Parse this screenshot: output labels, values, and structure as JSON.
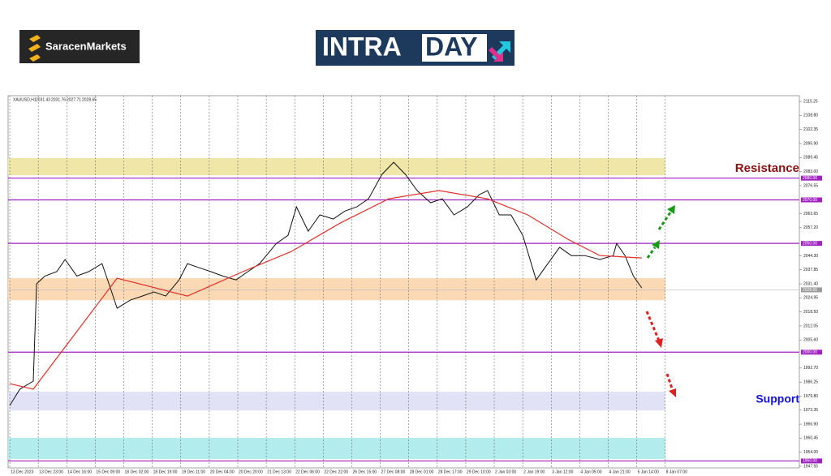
{
  "header": {
    "brand": "SaracenMarkets",
    "banner_parts": [
      "INTRA",
      "DAY"
    ]
  },
  "chart_data": {
    "type": "line",
    "symbol": "XAUUSD,H1",
    "ohlc": [
      2031.43,
      2031.76,
      2027.71,
      2028.65
    ],
    "xlim": [
      -1,
      471
    ],
    "ylim": [
      1946.8,
      2117.9
    ],
    "xticks": [
      {
        "value": 0,
        "label": "13 Dec 2023"
      },
      {
        "value": 17,
        "label": "13 Dec 23:00"
      },
      {
        "value": 34,
        "label": "14 Dec 16:00"
      },
      {
        "value": 51,
        "label": "15 Dec 09:00"
      },
      {
        "value": 68,
        "label": "18 Dec 02:00"
      },
      {
        "value": 85,
        "label": "18 Dec 19:00"
      },
      {
        "value": 102,
        "label": "19 Dec 11:00"
      },
      {
        "value": 119,
        "label": "20 Dec 04:00"
      },
      {
        "value": 136,
        "label": "20 Dec 20:00"
      },
      {
        "value": 153,
        "label": "21 Dec 13:00"
      },
      {
        "value": 170,
        "label": "22 Dec 06:00"
      },
      {
        "value": 187,
        "label": "22 Dec 22:00"
      },
      {
        "value": 204,
        "label": "26 Dec 15:00"
      },
      {
        "value": 221,
        "label": "27 Dec 08:00"
      },
      {
        "value": 238,
        "label": "28 Dec 01:00"
      },
      {
        "value": 255,
        "label": "28 Dec 17:00"
      },
      {
        "value": 272,
        "label": "29 Dec 10:00"
      },
      {
        "value": 289,
        "label": "2 Jan 03:00"
      },
      {
        "value": 306,
        "label": "2 Jan 19:00"
      },
      {
        "value": 323,
        "label": "3 Jan 12:00"
      },
      {
        "value": 340,
        "label": "4 Jan 05:00"
      },
      {
        "value": 357,
        "label": "4 Jan 21:00"
      },
      {
        "value": 374,
        "label": "5 Jan 14:00"
      },
      {
        "value": 391,
        "label": "8 Jan 07:00"
      }
    ],
    "yticks": [
      2115.25,
      {
        "value": 2108.8,
        "label": "2108.80"
      },
      2102.35,
      {
        "value": 2095.9,
        "label": "2095.90"
      },
      2089.45,
      {
        "value": 2083,
        "label": "2083.00"
      },
      2076.55,
      2063.65,
      {
        "value": 2057.2,
        "label": "2057.20"
      },
      {
        "value": 2044.3,
        "label": "2044.30"
      },
      2037.85,
      {
        "value": 2031.4,
        "label": "2031.40"
      },
      2024.95,
      {
        "value": 2018.5,
        "label": "2018.50"
      },
      2012.05,
      {
        "value": 2005.6,
        "label": "2005.60"
      },
      {
        "value": 1992.7,
        "label": "1992.70"
      },
      1986.25,
      {
        "value": 1979.8,
        "label": "1979.80"
      },
      1973.35,
      {
        "value": 1966.9,
        "label": "1966.90"
      },
      1960.45,
      {
        "value": 1954,
        "label": "1954.00"
      },
      1947.55
    ],
    "series": [
      {
        "color": "#111111",
        "x": [
          0,
          6,
          14,
          16,
          21,
          28,
          33,
          40,
          47,
          55,
          60,
          64,
          72,
          79,
          86,
          93,
          101,
          106,
          113,
          120,
          127,
          135,
          142,
          149,
          159,
          166,
          171,
          178,
          185,
          193,
          200,
          207,
          214,
          222,
          229,
          236,
          243,
          251,
          258,
          265,
          273,
          280,
          285,
          292,
          299,
          306,
          314,
          321,
          328,
          335,
          343,
          352,
          360,
          362,
          367,
          372,
          377
        ],
        "values": [
          1975.5,
          1983,
          1986.7,
          2031.4,
          2035,
          2037,
          2042.6,
          2035,
          2037,
          2040.7,
          2029.5,
          2020.2,
          2024,
          2025.8,
          2027.7,
          2025.8,
          2033.2,
          2040.7,
          2038.8,
          2037,
          2035,
          2033.2,
          2037,
          2040.7,
          2050,
          2053.7,
          2066.8,
          2055.6,
          2063.1,
          2061.2,
          2064.9,
          2066.8,
          2070.5,
          2081.7,
          2087.3,
          2081.7,
          2074.3,
          2068.7,
          2070.5,
          2063.1,
          2066.8,
          2072.4,
          2074.3,
          2063.1,
          2063.1,
          2053.7,
          2033.2,
          2040.7,
          2048.2,
          2044.4,
          2044.4,
          2042.6,
          2044.4,
          2050,
          2044.4,
          2035,
          2029.5
        ]
      },
      {
        "color": "#e0302a",
        "x": [
          0,
          14,
          64,
          106,
          139,
          168,
          197,
          226,
          256,
          285,
          309,
          333,
          352,
          377
        ],
        "values": [
          1985.5,
          1983,
          2034,
          2025.8,
          2037,
          2046.3,
          2059.3,
          2070.5,
          2074.3,
          2070.5,
          2063.1,
          2051.9,
          2044.4,
          2043.3
        ]
      }
    ],
    "zones_end_x": 391,
    "bands": [
      {
        "from": 2081.3,
        "to": 2089.2,
        "color": "#efe6a8"
      },
      {
        "from": 2023.9,
        "to": 2034,
        "color": "#fbd9b5"
      },
      {
        "from": 1973.2,
        "to": 1981.8,
        "color": "#e2e2f7"
      },
      {
        "from": 1950.9,
        "to": 1960.6,
        "color": "#b2ecec"
      }
    ],
    "hlines": [
      {
        "value": 2080,
        "label": "2080.00"
      },
      {
        "value": 2070,
        "label": "2070.00"
      },
      {
        "value": 2050,
        "label": "2050.00"
      },
      {
        "value": 2000,
        "label": "2000.00"
      },
      {
        "value": 1950,
        "label": "1950.00"
      }
    ],
    "hline_color": "#a020c0",
    "current_price": 2028.65,
    "annotations": [
      {
        "text": "Resistance",
        "color": "#8b1010"
      },
      {
        "text": "Support",
        "color": "#1010e0"
      }
    ],
    "grid": true
  }
}
